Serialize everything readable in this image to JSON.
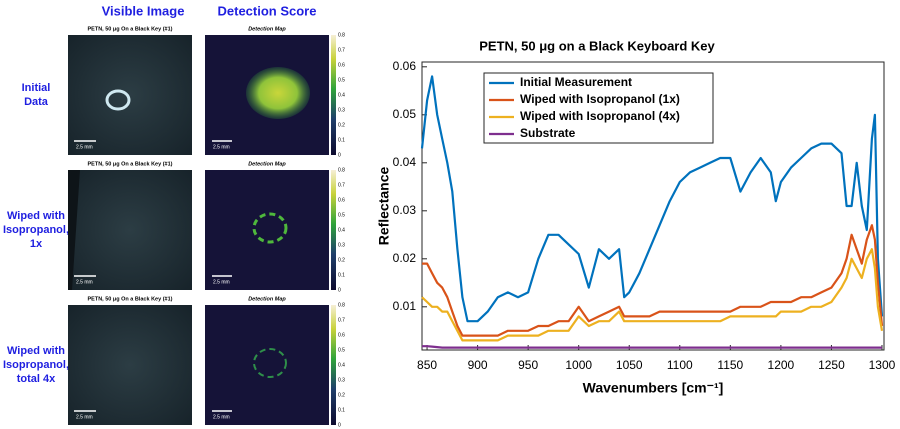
{
  "panel": {
    "columns": [
      "Visible Image",
      "Detection Score"
    ],
    "rows": [
      [
        "Initial",
        "Data"
      ],
      [
        "Wiped with",
        "Isopropanol,",
        "1x"
      ],
      [
        "Wiped with",
        "Isopropanol,",
        "total 4x"
      ]
    ],
    "image_title": "PETN, 50 μg On a Black Key (#1)",
    "map_title": "Detection Map",
    "scale_bar": "2.5 mm",
    "colorbar_ticks": [
      0,
      0.1,
      0.2,
      0.3,
      0.4,
      0.5,
      0.6,
      0.7,
      0.8
    ]
  },
  "chart_data": {
    "type": "line",
    "title": "PETN, 50 μg on a Black Keyboard Key",
    "x_label": "Wavenumbers [cm⁻¹]",
    "y_label": "Reflectance",
    "x": [
      845,
      850,
      855,
      860,
      865,
      870,
      875,
      880,
      885,
      890,
      900,
      910,
      920,
      930,
      940,
      950,
      960,
      970,
      980,
      990,
      1000,
      1010,
      1020,
      1030,
      1040,
      1045,
      1050,
      1060,
      1070,
      1080,
      1090,
      1100,
      1110,
      1120,
      1130,
      1140,
      1150,
      1160,
      1170,
      1180,
      1190,
      1195,
      1200,
      1210,
      1220,
      1230,
      1240,
      1250,
      1260,
      1265,
      1270,
      1275,
      1280,
      1285,
      1290,
      1293,
      1296,
      1300
    ],
    "series": [
      {
        "name": "Initial Measurement",
        "color": "#0072bd",
        "values": [
          0.043,
          0.053,
          0.058,
          0.05,
          0.045,
          0.04,
          0.034,
          0.022,
          0.012,
          0.007,
          0.007,
          0.009,
          0.012,
          0.013,
          0.012,
          0.013,
          0.02,
          0.025,
          0.025,
          0.023,
          0.021,
          0.014,
          0.022,
          0.02,
          0.022,
          0.012,
          0.013,
          0.017,
          0.022,
          0.027,
          0.032,
          0.036,
          0.038,
          0.039,
          0.04,
          0.041,
          0.041,
          0.034,
          0.038,
          0.041,
          0.038,
          0.032,
          0.036,
          0.039,
          0.041,
          0.043,
          0.044,
          0.044,
          0.042,
          0.031,
          0.031,
          0.04,
          0.031,
          0.026,
          0.045,
          0.05,
          0.02,
          0.008
        ]
      },
      {
        "name": "Wiped with Isopropanol (1x)",
        "color": "#d95319",
        "values": [
          0.019,
          0.019,
          0.017,
          0.015,
          0.014,
          0.012,
          0.009,
          0.006,
          0.004,
          0.004,
          0.004,
          0.004,
          0.004,
          0.005,
          0.005,
          0.005,
          0.006,
          0.006,
          0.007,
          0.007,
          0.01,
          0.007,
          0.008,
          0.009,
          0.01,
          0.008,
          0.008,
          0.008,
          0.008,
          0.009,
          0.009,
          0.009,
          0.009,
          0.009,
          0.009,
          0.009,
          0.009,
          0.01,
          0.01,
          0.01,
          0.011,
          0.011,
          0.011,
          0.011,
          0.012,
          0.012,
          0.013,
          0.014,
          0.017,
          0.02,
          0.025,
          0.022,
          0.019,
          0.024,
          0.027,
          0.024,
          0.015,
          0.006
        ]
      },
      {
        "name": "Wiped with Isopropanol (4x)",
        "color": "#edb120",
        "values": [
          0.012,
          0.011,
          0.01,
          0.01,
          0.009,
          0.009,
          0.007,
          0.005,
          0.003,
          0.003,
          0.003,
          0.003,
          0.003,
          0.004,
          0.004,
          0.004,
          0.004,
          0.005,
          0.005,
          0.005,
          0.008,
          0.006,
          0.007,
          0.007,
          0.009,
          0.007,
          0.007,
          0.007,
          0.007,
          0.007,
          0.007,
          0.007,
          0.007,
          0.007,
          0.007,
          0.007,
          0.008,
          0.008,
          0.008,
          0.008,
          0.008,
          0.008,
          0.009,
          0.009,
          0.009,
          0.01,
          0.01,
          0.011,
          0.014,
          0.016,
          0.02,
          0.018,
          0.016,
          0.02,
          0.022,
          0.018,
          0.01,
          0.005
        ]
      },
      {
        "name": "Substrate",
        "color": "#7e2f8e",
        "values": [
          0.0018,
          0.0018,
          0.0017,
          0.0016,
          0.0015,
          0.0015,
          0.0015,
          0.0015,
          0.0015,
          0.0015,
          0.0015,
          0.0015,
          0.0015,
          0.0015,
          0.0015,
          0.0015,
          0.0015,
          0.0015,
          0.0015,
          0.0015,
          0.0015,
          0.0015,
          0.0015,
          0.0015,
          0.0015,
          0.0015,
          0.0015,
          0.0015,
          0.0015,
          0.0015,
          0.0015,
          0.0015,
          0.0015,
          0.0015,
          0.0015,
          0.0015,
          0.0015,
          0.0015,
          0.0015,
          0.0015,
          0.0015,
          0.0015,
          0.0015,
          0.0015,
          0.0015,
          0.0015,
          0.0015,
          0.0015,
          0.0015,
          0.0015,
          0.0015,
          0.0015,
          0.0015,
          0.0015,
          0.0015,
          0.0015,
          0.0015,
          0.0015
        ]
      }
    ],
    "xlim": [
      845,
      1302
    ],
    "ylim": [
      0.001,
      0.061
    ],
    "xticks": [
      850,
      900,
      950,
      1000,
      1050,
      1100,
      1150,
      1200,
      1250,
      1300
    ],
    "yticks": [
      0.01,
      0.02,
      0.03,
      0.04,
      0.05,
      0.06
    ],
    "grid": false,
    "legend": "upper-left"
  }
}
